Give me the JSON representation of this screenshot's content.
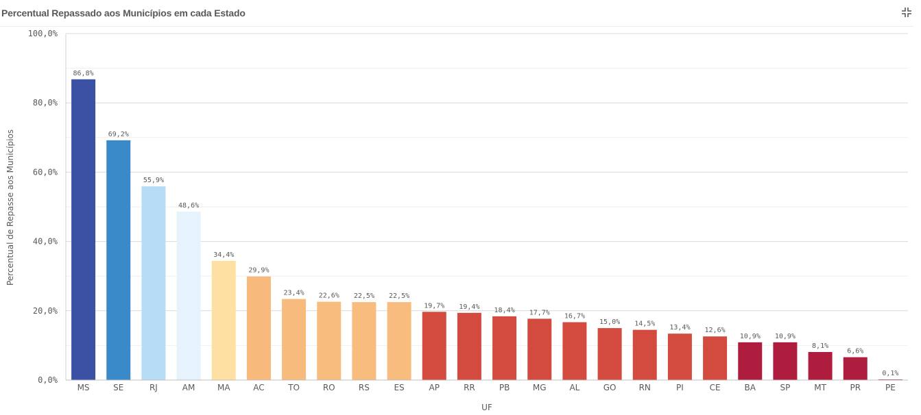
{
  "header": {
    "title": "Percentual Repassado aos Municípios em cada Estado",
    "expand_icon": "collapse-arrows-icon"
  },
  "chart_data": {
    "type": "bar",
    "title": "Percentual Repassado aos Municípios em cada Estado",
    "xlabel": "UF",
    "ylabel": "Percentual de Repasse aos Municípios",
    "ylim": [
      0,
      100
    ],
    "yticks": [
      "0,0%",
      "20,0%",
      "40,0%",
      "60,0%",
      "80,0%",
      "100,0%"
    ],
    "ytick_values": [
      0,
      20,
      40,
      60,
      80,
      100
    ],
    "grid": true,
    "categories": [
      "MS",
      "SE",
      "RJ",
      "AM",
      "MA",
      "AC",
      "TO",
      "RO",
      "RS",
      "ES",
      "AP",
      "RR",
      "PB",
      "MG",
      "AL",
      "GO",
      "RN",
      "PI",
      "CE",
      "BA",
      "SP",
      "MT",
      "PR",
      "PE"
    ],
    "values": [
      86.8,
      69.2,
      55.9,
      48.6,
      34.4,
      29.9,
      23.4,
      22.6,
      22.5,
      22.5,
      19.7,
      19.4,
      18.4,
      17.7,
      16.7,
      15.0,
      14.5,
      13.4,
      12.6,
      10.9,
      10.9,
      8.1,
      6.6,
      0.1
    ],
    "data_labels": [
      "86,8%",
      "69,2%",
      "55,9%",
      "48,6%",
      "34,4%",
      "29,9%",
      "23,4%",
      "22,6%",
      "22,5%",
      "22,5%",
      "19,7%",
      "19,4%",
      "18,4%",
      "17,7%",
      "16,7%",
      "15,0%",
      "14,5%",
      "13,4%",
      "12,6%",
      "10,9%",
      "10,9%",
      "8,1%",
      "6,6%",
      "0,1%"
    ],
    "colors": [
      "#3b51a3",
      "#3a89c9",
      "#b7dcf5",
      "#e6f3fc",
      "#fee0a2",
      "#f7b97c",
      "#f7bb7d",
      "#f8bc7f",
      "#f8bc7f",
      "#f8bc7f",
      "#d24b3e",
      "#d24b3e",
      "#d24b3e",
      "#d24b3e",
      "#d24b3e",
      "#d24b3e",
      "#d24b3e",
      "#d24b3e",
      "#d24b3e",
      "#ae1c3e",
      "#ae1c3e",
      "#ae1c3e",
      "#ae1c3e",
      "#ae1c3e"
    ]
  }
}
